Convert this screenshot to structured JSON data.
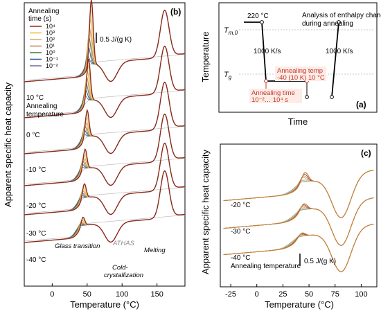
{
  "chart_data": [
    {
      "panel": "b",
      "type": "line",
      "panel_label": "(b)",
      "ylabel": "Apparent specific heat capacity",
      "xlabel": "Temperature (°C)",
      "x_ticks": [
        0,
        50,
        100,
        150
      ],
      "xlim": [
        -40,
        190
      ],
      "scale_bar": "0.5 J/(g K)",
      "legend_title": [
        "Annealing",
        "time (s)"
      ],
      "legend": [
        {
          "label": "10⁴",
          "color": "#8b2b1f"
        },
        {
          "label": "10³",
          "color": "#e8c037"
        },
        {
          "label": "10²",
          "color": "#d7a96b"
        },
        {
          "label": "10¹",
          "color": "#c97f4c"
        },
        {
          "label": "10⁰",
          "color": "#3f7f3a"
        },
        {
          "label": "10⁻¹",
          "color": "#2f4f8f"
        },
        {
          "label": "10⁻²",
          "color": "#6b6b9b"
        }
      ],
      "series": [
        {
          "annealing_temperature": "10 °C",
          "annealing_label": "Annealing temperature",
          "aging_peak_x": 56
        },
        {
          "annealing_temperature": "0 °C",
          "aging_peak_x": 52
        },
        {
          "annealing_temperature": "-10 °C",
          "aging_peak_x": 50
        },
        {
          "annealing_temperature": "-20 °C",
          "aging_peak_x": 47
        },
        {
          "annealing_temperature": "-30 °C",
          "aging_peak_x": 46
        },
        {
          "annealing_temperature": "-40 °C",
          "aging_peak_x": 44
        }
      ],
      "annotations": [
        "Glass transition",
        "ATHAS",
        "Cold-crystallization",
        "Melting"
      ],
      "extra_text": [
        "10 °C",
        "0 °C",
        "-10 °C",
        "-20 °C",
        "-30 °C",
        "-40 °C"
      ]
    },
    {
      "panel": "a",
      "type": "line",
      "panel_label": "(a)",
      "ylabel": "Temperature",
      "xlabel": "Time",
      "y_marks": [
        {
          "label": "T",
          "sub": "m,0"
        },
        {
          "label": "T",
          "sub": "g"
        }
      ],
      "annotations": {
        "start_temp": "220 °C",
        "cool_rate": "1000 K/s",
        "heat_rate": "1000 K/s",
        "analysis": [
          "Analysis of enthalpy change",
          "during annealing"
        ],
        "anneal_temp": [
          "Annealing temp",
          "-40 (10 K) 10 °C"
        ],
        "anneal_time": [
          "Annealing time",
          "10⁻²… 10⁴ s"
        ]
      }
    },
    {
      "panel": "c",
      "type": "line",
      "panel_label": "(c)",
      "ylabel": "Apparent specific heat capacity",
      "xlabel": "Temperature (°C)",
      "x_ticks": [
        -25,
        0,
        25,
        50,
        75,
        100
      ],
      "xlim": [
        -35,
        115
      ],
      "scale_bar": "0.5 J/(g K)",
      "series": [
        {
          "annealing_temperature": "-20 °C",
          "aging_peak_x": 46
        },
        {
          "annealing_temperature": "-30 °C",
          "aging_peak_x": 45
        },
        {
          "annealing_temperature": "-40 °C",
          "annealing_label": "Annealing temperature",
          "aging_peak_x": 43
        }
      ],
      "extra_text": [
        "-20 °C",
        "-30 °C",
        "-40 °C",
        "Annealing temperature"
      ]
    }
  ]
}
